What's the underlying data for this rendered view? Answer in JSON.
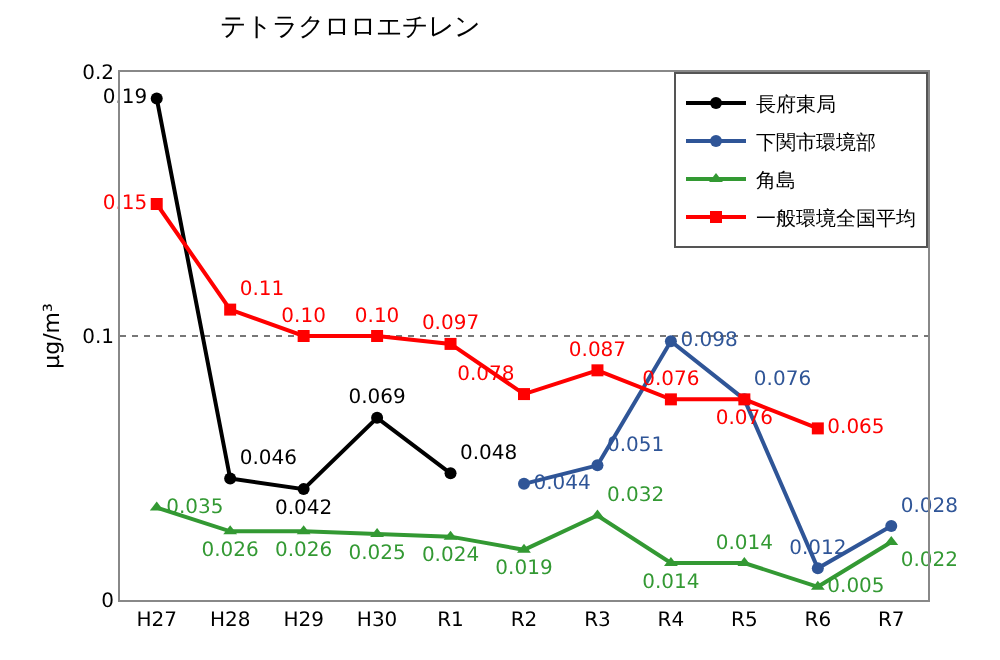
{
  "chart_data": {
    "type": "line",
    "title": "テトラクロロエチレン",
    "ylabel": "μg/m³",
    "categories": [
      "H27",
      "H28",
      "H29",
      "H30",
      "R1",
      "R2",
      "R3",
      "R4",
      "R5",
      "R6",
      "R7"
    ],
    "ylim": [
      0,
      0.2
    ],
    "yticks": [
      0,
      0.1,
      0.2
    ],
    "grid": "y",
    "legend": "top right",
    "series": [
      {
        "name": "長府東局",
        "color": "#000000",
        "marker": "circle",
        "values": [
          0.19,
          0.046,
          0.042,
          0.069,
          0.048,
          null,
          null,
          null,
          null,
          null,
          null
        ],
        "value_labels": [
          "0.19",
          "0.046",
          "0.042",
          "0.069",
          "0.048",
          null,
          null,
          null,
          null,
          null,
          null
        ]
      },
      {
        "name": "下関市環境部",
        "color": "#2f5597",
        "marker": "circle",
        "values": [
          null,
          null,
          null,
          null,
          null,
          0.044,
          0.051,
          0.098,
          0.076,
          0.012,
          0.028
        ],
        "value_labels": [
          null,
          null,
          null,
          null,
          null,
          "0.044",
          "0.051",
          "0.098",
          "0.076",
          "0.012",
          "0.028"
        ]
      },
      {
        "name": "角島",
        "color": "#339933",
        "marker": "triangle",
        "values": [
          0.035,
          0.026,
          0.026,
          0.025,
          0.024,
          0.019,
          0.032,
          0.014,
          0.014,
          0.005,
          0.022
        ],
        "value_labels": [
          "0.035",
          "0.026",
          "0.026",
          "0.025",
          "0.024",
          "0.019",
          "0.032",
          "0.014",
          "0.014",
          "0.005",
          "0.022"
        ]
      },
      {
        "name": "一般環境全国平均",
        "color": "#ff0000",
        "marker": "square",
        "values": [
          0.15,
          0.11,
          0.1,
          0.1,
          0.097,
          0.078,
          0.087,
          0.076,
          0.076,
          0.065,
          null
        ],
        "value_labels": [
          "0.15",
          "0.11",
          "0.10",
          "0.10",
          "0.097",
          "0.078",
          "0.087",
          "0.076",
          "0.076",
          "0.065",
          null
        ]
      }
    ]
  }
}
